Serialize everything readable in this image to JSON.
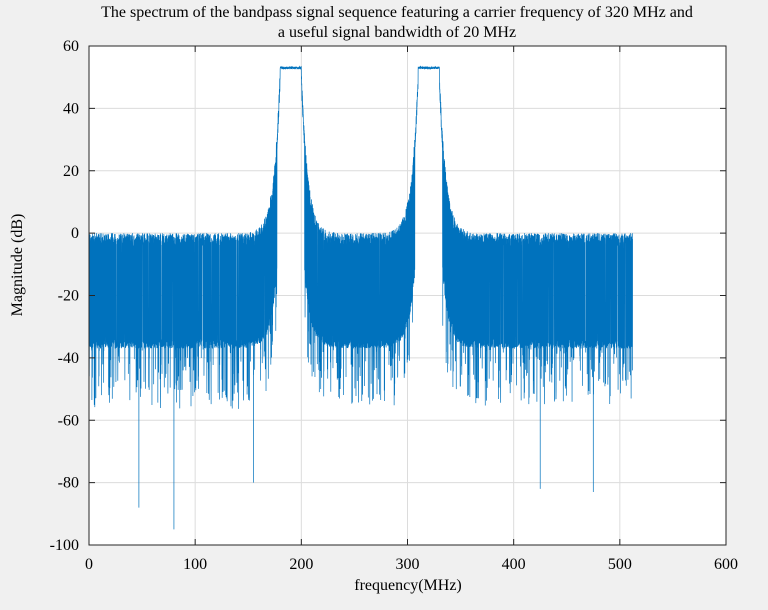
{
  "chart_data": {
    "type": "line",
    "title": [
      "The spectrum of the bandpass signal sequence featuring a carrier frequency of 320 MHz and",
      "a useful signal bandwidth of 20 MHz"
    ],
    "xlabel": "frequency(MHz)",
    "ylabel": "Magnitude (dB)",
    "xlim": [
      0,
      600
    ],
    "ylim": [
      -100,
      60
    ],
    "xticks": [
      0,
      100,
      200,
      300,
      400,
      500,
      600
    ],
    "yticks": [
      60,
      40,
      20,
      0,
      -20,
      -40,
      -60,
      -80,
      -100
    ],
    "grid": true,
    "line_color": "#0072bd",
    "x_range": [
      0,
      512
    ],
    "passbands": [
      {
        "low": 180,
        "high": 200,
        "level": 53
      },
      {
        "low": 310,
        "high": 330,
        "level": 53
      }
    ],
    "noise_band_top": 0,
    "noise_band_bottom": -37,
    "notable_dips": [
      {
        "x": 47,
        "y": -88
      },
      {
        "x": 80,
        "y": -95
      },
      {
        "x": 155,
        "y": -80
      },
      {
        "x": 425,
        "y": -82
      },
      {
        "x": 475,
        "y": -83
      }
    ]
  }
}
